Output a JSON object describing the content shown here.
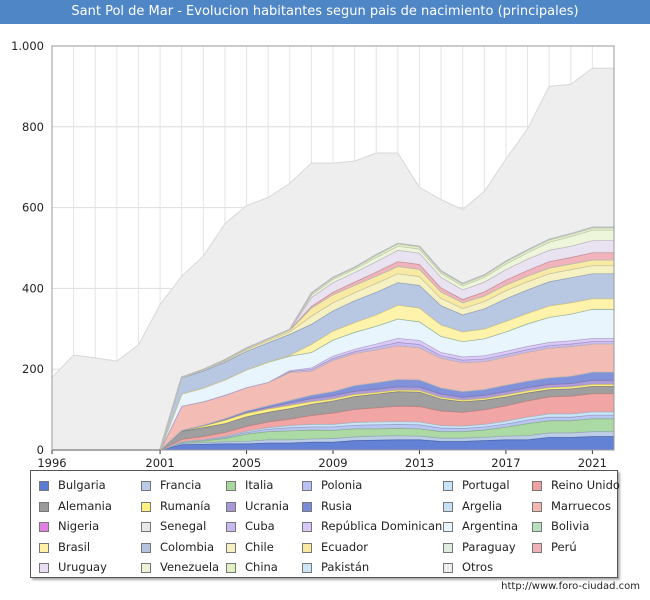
{
  "title": "Sant Pol de Mar - Evolucion habitantes segun pais de nacimiento (principales)",
  "footer": "http://www.foro-ciudad.com",
  "chart_data": {
    "type": "area",
    "stacked": true,
    "ylim": [
      0,
      1000
    ],
    "xlim": [
      1996,
      2022
    ],
    "yticks": [
      0,
      200,
      400,
      600,
      800,
      1000
    ],
    "ytick_labels": [
      "0",
      "200",
      "400",
      "600",
      "800",
      "1.000"
    ],
    "xticks": [
      1996,
      2001,
      2005,
      2009,
      2013,
      2017,
      2021
    ],
    "grid": true,
    "x": [
      1996,
      1997,
      1998,
      1999,
      2000,
      2001,
      2002,
      2003,
      2004,
      2005,
      2006,
      2007,
      2008,
      2009,
      2010,
      2011,
      2012,
      2013,
      2014,
      2015,
      2016,
      2017,
      2018,
      2019,
      2020,
      2021,
      2022
    ],
    "total": [
      180,
      235,
      228,
      220,
      260,
      360,
      430,
      480,
      560,
      605,
      625,
      660,
      710,
      710,
      715,
      735,
      735,
      650,
      620,
      595,
      640,
      720,
      795,
      900,
      905,
      945,
      945
    ],
    "series": [
      {
        "name": "Bulgaria",
        "color": "#5b7bd4",
        "values": [
          0,
          0,
          0,
          0,
          0,
          0,
          14,
          15,
          16,
          16,
          18,
          18,
          20,
          20,
          24,
          25,
          26,
          26,
          22,
          22,
          24,
          26,
          26,
          32,
          32,
          34,
          34
        ]
      },
      {
        "name": "Francia",
        "color": "#b9cce6",
        "values": [
          0,
          0,
          0,
          0,
          0,
          0,
          3,
          4,
          5,
          6,
          8,
          8,
          8,
          9,
          9,
          10,
          10,
          9,
          8,
          8,
          8,
          9,
          10,
          11,
          11,
          12,
          12
        ]
      },
      {
        "name": "Italia",
        "color": "#a8d8a0",
        "values": [
          0,
          0,
          0,
          0,
          0,
          0,
          2,
          4,
          8,
          18,
          20,
          22,
          22,
          20,
          20,
          18,
          18,
          18,
          16,
          16,
          18,
          22,
          30,
          30,
          30,
          32,
          32
        ]
      },
      {
        "name": "Polonia",
        "color": "#b5c2f2",
        "values": [
          0,
          0,
          0,
          0,
          0,
          0,
          1,
          2,
          3,
          4,
          6,
          8,
          8,
          9,
          9,
          10,
          10,
          10,
          9,
          8,
          8,
          8,
          9,
          9,
          9,
          9,
          9
        ]
      },
      {
        "name": "Portugal",
        "color": "#c8e4f8",
        "values": [
          0,
          0,
          0,
          0,
          0,
          0,
          1,
          1,
          2,
          3,
          4,
          5,
          6,
          6,
          7,
          7,
          7,
          7,
          6,
          6,
          6,
          7,
          7,
          8,
          8,
          8,
          8
        ]
      },
      {
        "name": "Reino Unido",
        "color": "#f0a0a0",
        "values": [
          0,
          0,
          0,
          0,
          0,
          0,
          6,
          8,
          10,
          12,
          14,
          16,
          22,
          28,
          32,
          35,
          38,
          38,
          36,
          34,
          36,
          38,
          40,
          42,
          44,
          45,
          45
        ]
      },
      {
        "name": "Alemania",
        "color": "#9a9a9a",
        "values": [
          0,
          0,
          0,
          0,
          0,
          0,
          20,
          22,
          22,
          24,
          24,
          26,
          28,
          30,
          32,
          34,
          36,
          36,
          30,
          26,
          24,
          22,
          20,
          18,
          18,
          18,
          18
        ]
      },
      {
        "name": "Rumanía",
        "color": "#fff080",
        "values": [
          0,
          0,
          0,
          0,
          0,
          0,
          1,
          4,
          8,
          8,
          8,
          8,
          6,
          5,
          5,
          4,
          4,
          4,
          4,
          4,
          4,
          5,
          5,
          5,
          5,
          5,
          5
        ]
      },
      {
        "name": "Ucrania",
        "color": "#a898d8",
        "values": [
          0,
          0,
          0,
          0,
          0,
          0,
          0,
          1,
          2,
          3,
          4,
          6,
          8,
          8,
          8,
          8,
          8,
          8,
          8,
          7,
          8,
          8,
          8,
          8,
          8,
          10,
          10
        ]
      },
      {
        "name": "Rusia",
        "color": "#7a8cd8",
        "values": [
          0,
          0,
          0,
          0,
          0,
          0,
          1,
          1,
          2,
          3,
          4,
          6,
          8,
          10,
          14,
          16,
          18,
          18,
          15,
          14,
          14,
          16,
          16,
          16,
          18,
          20,
          20
        ]
      },
      {
        "name": "Argelia",
        "color": "#c8e0f4",
        "values": [
          0,
          0,
          0,
          0,
          0,
          0,
          0,
          0,
          0,
          0,
          0,
          0,
          0,
          0,
          0,
          0,
          0,
          0,
          0,
          0,
          0,
          0,
          0,
          0,
          0,
          0,
          0
        ]
      },
      {
        "name": "Marruecos",
        "color": "#f2b8b0",
        "values": [
          0,
          0,
          0,
          0,
          0,
          0,
          60,
          58,
          58,
          58,
          58,
          70,
          60,
          78,
          80,
          82,
          84,
          80,
          74,
          72,
          70,
          70,
          72,
          74,
          74,
          70,
          70
        ]
      },
      {
        "name": "Nigeria",
        "color": "#e080e0",
        "values": [
          0,
          0,
          0,
          0,
          0,
          0,
          0,
          0,
          0,
          0,
          0,
          0,
          0,
          0,
          0,
          0,
          0,
          0,
          0,
          0,
          0,
          0,
          0,
          0,
          0,
          0,
          0
        ]
      },
      {
        "name": "Senegal",
        "color": "#e8e8e8",
        "values": [
          0,
          0,
          0,
          0,
          0,
          0,
          0,
          0,
          0,
          0,
          0,
          0,
          0,
          0,
          0,
          0,
          0,
          0,
          0,
          0,
          0,
          0,
          0,
          0,
          0,
          0,
          0
        ]
      },
      {
        "name": "Cuba",
        "color": "#c8b8f0",
        "values": [
          0,
          0,
          0,
          0,
          0,
          0,
          0,
          0,
          0,
          0,
          0,
          2,
          4,
          4,
          4,
          6,
          8,
          8,
          6,
          6,
          6,
          6,
          6,
          6,
          6,
          6,
          6
        ]
      },
      {
        "name": "República Dominicana",
        "color": "#d8c8f8",
        "values": [
          0,
          0,
          0,
          0,
          0,
          0,
          0,
          0,
          0,
          0,
          0,
          2,
          4,
          6,
          6,
          8,
          10,
          10,
          8,
          8,
          8,
          8,
          8,
          8,
          8,
          8,
          8
        ]
      },
      {
        "name": "Argentina",
        "color": "#e8f4fc",
        "values": [
          0,
          0,
          0,
          0,
          0,
          0,
          30,
          34,
          38,
          44,
          50,
          36,
          38,
          40,
          42,
          44,
          48,
          46,
          40,
          38,
          42,
          48,
          56,
          62,
          66,
          72,
          72
        ]
      },
      {
        "name": "Bolivia",
        "color": "#b8e0c0",
        "values": [
          0,
          0,
          0,
          0,
          0,
          0,
          0,
          0,
          0,
          0,
          0,
          0,
          0,
          0,
          0,
          0,
          0,
          0,
          0,
          0,
          0,
          0,
          0,
          0,
          0,
          0,
          0
        ]
      },
      {
        "name": "Brasil",
        "color": "#fff2a8",
        "values": [
          0,
          0,
          0,
          0,
          0,
          0,
          0,
          0,
          0,
          0,
          0,
          2,
          20,
          22,
          24,
          28,
          34,
          34,
          28,
          24,
          24,
          26,
          26,
          28,
          28,
          26,
          26
        ]
      },
      {
        "name": "Colombia",
        "color": "#b4c4e0",
        "values": [
          0,
          0,
          0,
          0,
          0,
          0,
          40,
          42,
          44,
          46,
          48,
          52,
          50,
          50,
          54,
          56,
          56,
          56,
          48,
          42,
          50,
          56,
          58,
          60,
          62,
          62,
          62
        ]
      },
      {
        "name": "Chile",
        "color": "#f4f0c0",
        "values": [
          0,
          0,
          0,
          0,
          0,
          0,
          1,
          2,
          3,
          4,
          5,
          6,
          20,
          20,
          20,
          22,
          22,
          22,
          18,
          16,
          18,
          20,
          20,
          20,
          20,
          20,
          20
        ]
      },
      {
        "name": "Ecuador",
        "color": "#f8e8a0",
        "values": [
          0,
          0,
          0,
          0,
          0,
          0,
          0,
          1,
          2,
          3,
          4,
          5,
          20,
          20,
          18,
          18,
          18,
          18,
          16,
          14,
          14,
          14,
          14,
          14,
          14,
          14,
          14
        ]
      },
      {
        "name": "Paraguay",
        "color": "#e0ece0",
        "values": [
          0,
          0,
          0,
          0,
          0,
          0,
          0,
          0,
          0,
          0,
          0,
          0,
          0,
          0,
          0,
          0,
          0,
          0,
          0,
          0,
          0,
          0,
          0,
          0,
          0,
          0,
          0
        ]
      },
      {
        "name": "Perú",
        "color": "#f0b0b8",
        "values": [
          0,
          0,
          0,
          0,
          0,
          0,
          0,
          0,
          0,
          0,
          0,
          0,
          4,
          6,
          8,
          10,
          12,
          12,
          10,
          8,
          10,
          12,
          14,
          16,
          16,
          18,
          18
        ]
      },
      {
        "name": "Uruguay",
        "color": "#e8e0f0",
        "values": [
          0,
          0,
          0,
          0,
          0,
          0,
          0,
          0,
          0,
          0,
          0,
          0,
          22,
          24,
          24,
          26,
          28,
          28,
          26,
          24,
          24,
          26,
          28,
          28,
          28,
          30,
          30
        ]
      },
      {
        "name": "Venezuela",
        "color": "#ecf4d8",
        "values": [
          0,
          0,
          0,
          0,
          0,
          0,
          0,
          0,
          0,
          0,
          0,
          0,
          6,
          8,
          8,
          10,
          10,
          10,
          10,
          10,
          12,
          14,
          16,
          20,
          24,
          26,
          26
        ]
      },
      {
        "name": "China",
        "color": "#e0f0c0",
        "values": [
          0,
          0,
          0,
          0,
          0,
          0,
          0,
          0,
          0,
          0,
          0,
          0,
          4,
          4,
          4,
          6,
          6,
          6,
          5,
          5,
          5,
          6,
          6,
          6,
          6,
          6,
          6
        ]
      },
      {
        "name": "Pakistán",
        "color": "#cce4f8",
        "values": [
          0,
          0,
          0,
          0,
          0,
          0,
          0,
          0,
          0,
          0,
          0,
          0,
          0,
          0,
          0,
          0,
          0,
          0,
          0,
          0,
          0,
          0,
          0,
          0,
          0,
          0,
          0
        ]
      },
      {
        "name": "Otros",
        "color": "#ececec",
        "values": [
          0,
          0,
          0,
          0,
          0,
          0,
          0,
          0,
          0,
          0,
          0,
          0,
          0,
          0,
          0,
          0,
          0,
          0,
          0,
          0,
          0,
          0,
          0,
          0,
          0,
          0,
          0
        ]
      }
    ]
  }
}
